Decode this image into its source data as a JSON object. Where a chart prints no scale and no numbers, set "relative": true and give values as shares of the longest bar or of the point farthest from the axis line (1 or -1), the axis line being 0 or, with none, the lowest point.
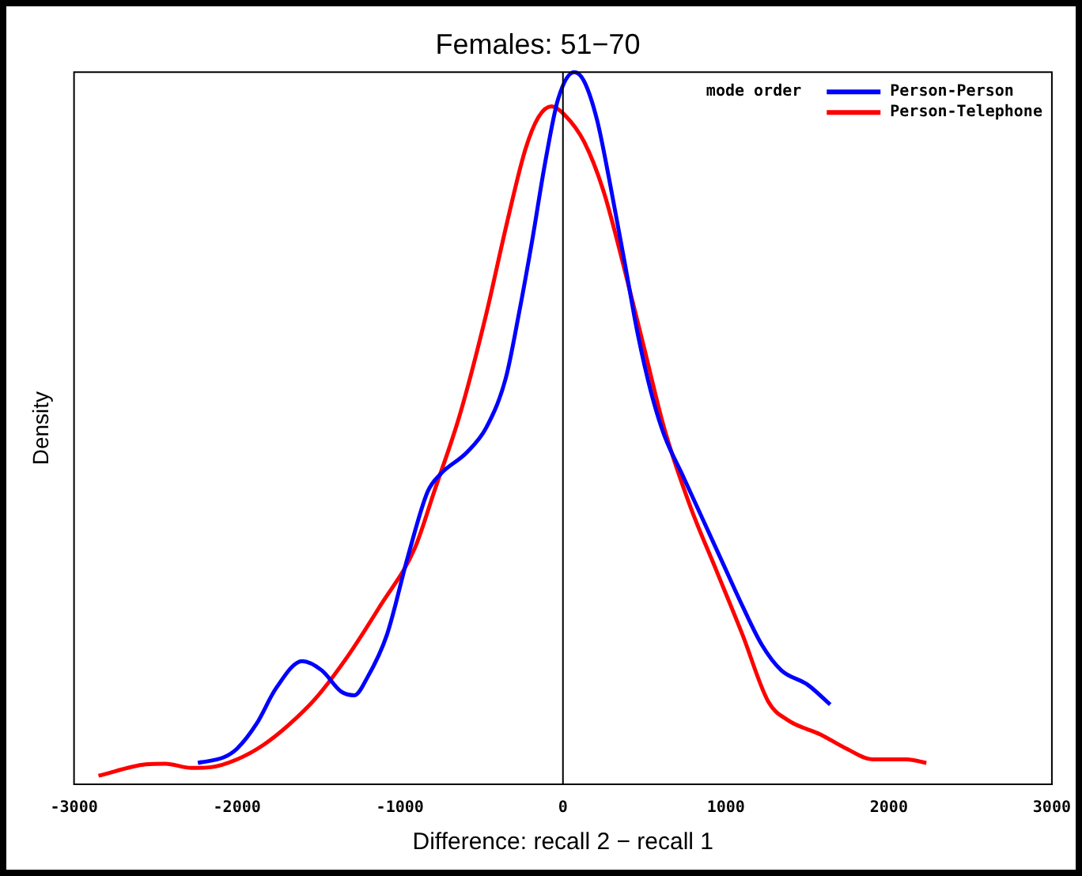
{
  "chart_data": {
    "type": "line",
    "title": "Females: 51−70",
    "xlabel": "Difference: recall 2 − recall 1",
    "ylabel": "Density",
    "relative": true,
    "legend_title": "mode order",
    "legend": "top right",
    "grid": false,
    "marker": "none",
    "line_style": "solid",
    "xlim": [
      -3000,
      3000
    ],
    "xticks": [
      -3000,
      -2000,
      -1000,
      0,
      1000,
      2000,
      3000
    ],
    "ref_lines": [
      {
        "axis": "x",
        "value": 0,
        "color": "#000000"
      }
    ],
    "series": [
      {
        "name": "Person-Person",
        "color": "#0000ff",
        "x": [
          -2240,
          -2080,
          -2000,
          -1880,
          -1760,
          -1600,
          -1480,
          -1360,
          -1280,
          -1200,
          -1080,
          -950,
          -830,
          -750,
          -590,
          -470,
          -350,
          -270,
          -190,
          -110,
          -30,
          70,
          130,
          210,
          290,
          380,
          460,
          540,
          620,
          740,
          860,
          980,
          1100,
          1220,
          1340,
          1500,
          1640
        ],
        "values": [
          0.03,
          0.038,
          0.05,
          0.085,
          0.135,
          0.173,
          0.16,
          0.13,
          0.125,
          0.15,
          0.21,
          0.321,
          0.411,
          0.436,
          0.466,
          0.501,
          0.571,
          0.661,
          0.762,
          0.872,
          0.962,
          1.0,
          0.987,
          0.932,
          0.842,
          0.731,
          0.631,
          0.551,
          0.491,
          0.431,
          0.371,
          0.311,
          0.251,
          0.196,
          0.16,
          0.14,
          0.112
        ]
      },
      {
        "name": "Person-Telephone",
        "color": "#ff0000",
        "x": [
          -2850,
          -2560,
          -2440,
          -2280,
          -2160,
          -2000,
          -1840,
          -1680,
          -1520,
          -1320,
          -1120,
          -910,
          -790,
          -630,
          -470,
          -350,
          -230,
          -150,
          -70,
          10,
          130,
          250,
          380,
          500,
          620,
          780,
          940,
          1100,
          1260,
          1380,
          1580,
          1740,
          1900,
          2110,
          2230
        ],
        "values": [
          0.012,
          0.028,
          0.029,
          0.023,
          0.024,
          0.035,
          0.055,
          0.084,
          0.12,
          0.18,
          0.251,
          0.331,
          0.411,
          0.521,
          0.661,
          0.782,
          0.892,
          0.937,
          0.952,
          0.94,
          0.902,
          0.832,
          0.721,
          0.611,
          0.501,
          0.391,
          0.301,
          0.211,
          0.116,
          0.09,
          0.07,
          0.05,
          0.035,
          0.035,
          0.03
        ]
      }
    ]
  }
}
